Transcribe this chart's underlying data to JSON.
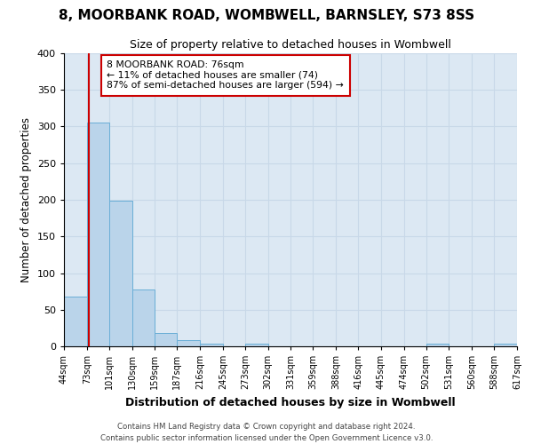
{
  "title": "8, MOORBANK ROAD, WOMBWELL, BARNSLEY, S73 8SS",
  "subtitle": "Size of property relative to detached houses in Wombwell",
  "xlabel": "Distribution of detached houses by size in Wombwell",
  "ylabel": "Number of detached properties",
  "bin_edges": [
    44,
    73,
    101,
    130,
    159,
    187,
    216,
    245,
    273,
    302,
    331,
    359,
    388,
    416,
    445,
    474,
    502,
    531,
    560,
    588,
    617
  ],
  "bar_heights": [
    68,
    305,
    199,
    77,
    18,
    8,
    4,
    0,
    4,
    0,
    0,
    0,
    0,
    0,
    0,
    0,
    4,
    0,
    0,
    4
  ],
  "tick_labels": [
    "44sqm",
    "73sqm",
    "101sqm",
    "130sqm",
    "159sqm",
    "187sqm",
    "216sqm",
    "245sqm",
    "273sqm",
    "302sqm",
    "331sqm",
    "359sqm",
    "388sqm",
    "416sqm",
    "445sqm",
    "474sqm",
    "502sqm",
    "531sqm",
    "560sqm",
    "588sqm",
    "617sqm"
  ],
  "bar_color": "#bad4ea",
  "bar_edge_color": "#6aaed6",
  "property_line_x": 76,
  "property_line_color": "#cc0000",
  "ylim": [
    0,
    400
  ],
  "yticks": [
    0,
    50,
    100,
    150,
    200,
    250,
    300,
    350,
    400
  ],
  "annotation_title": "8 MOORBANK ROAD: 76sqm",
  "annotation_line1": "← 11% of detached houses are smaller (74)",
  "annotation_line2": "87% of semi-detached houses are larger (594) →",
  "annotation_box_color": "#ffffff",
  "annotation_box_edge_color": "#cc0000",
  "footer_line1": "Contains HM Land Registry data © Crown copyright and database right 2024.",
  "footer_line2": "Contains public sector information licensed under the Open Government Licence v3.0.",
  "background_color": "#ffffff",
  "grid_color": "#c8d8e8"
}
